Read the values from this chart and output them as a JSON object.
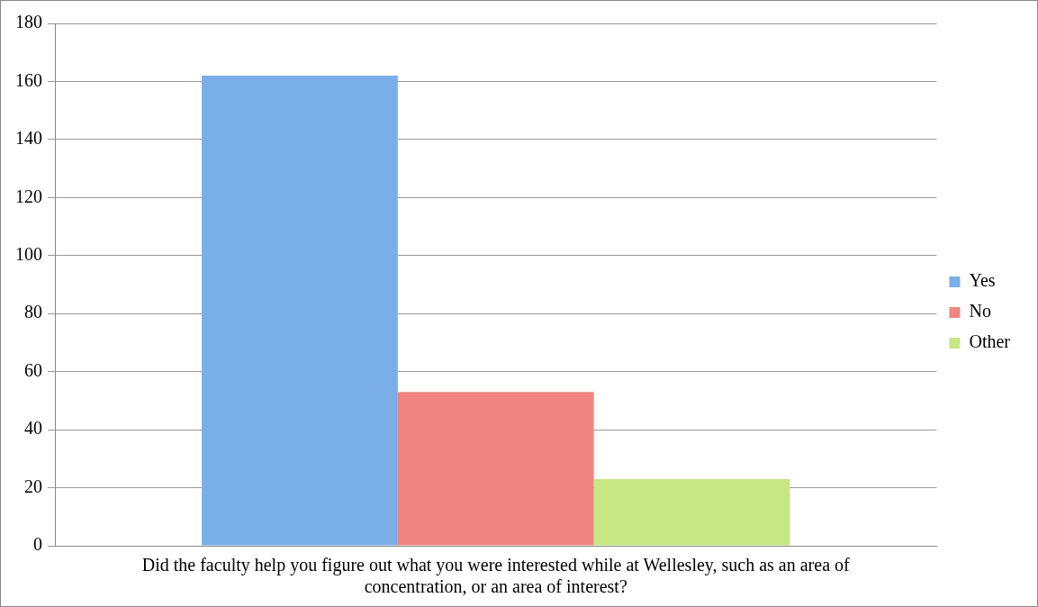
{
  "chart_data": {
    "type": "bar",
    "categories": [
      "Did the faculty help you figure out what you were interested while at Wellesley, such as an area of concentration, or an area of interest?"
    ],
    "series": [
      {
        "name": "Yes",
        "color": "#7aaee8",
        "values": [
          162
        ]
      },
      {
        "name": "No",
        "color": "#ee8580",
        "values": [
          53
        ]
      },
      {
        "name": "Other",
        "color": "#c6e784",
        "values": [
          23
        ]
      }
    ],
    "ylim": [
      0,
      180
    ],
    "yticks": [
      0,
      20,
      40,
      60,
      80,
      100,
      120,
      140,
      160,
      180
    ],
    "grid": "y",
    "legend": "right"
  }
}
